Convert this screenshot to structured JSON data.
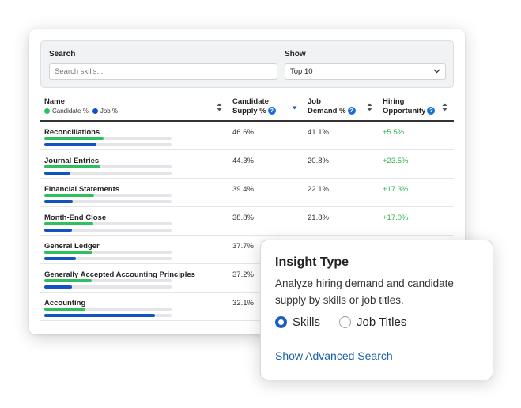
{
  "colors": {
    "candidate": "#2fbf5f",
    "job": "#1352c4",
    "opportunity": "#2fb14f",
    "link": "#1a5fa8"
  },
  "filters": {
    "search_label": "Search",
    "search_placeholder": "Search skills...",
    "show_label": "Show",
    "show_value": "Top 10"
  },
  "table": {
    "headers": {
      "name": "Name",
      "legend_candidate": "Candidate %",
      "legend_job": "Job %",
      "supply_l1": "Candidate",
      "supply_l2": "Supply %",
      "demand_l1": "Job",
      "demand_l2": "Demand %",
      "opp_l1": "Hiring",
      "opp_l2": "Opportunity"
    },
    "rows": [
      {
        "skill": "Reconciliations",
        "candidate_pct": 46.6,
        "job_pct": 41.1,
        "supply": "46.6%",
        "demand": "41.1%",
        "opportunity": "+5.5%"
      },
      {
        "skill": "Journal Entries",
        "candidate_pct": 44.3,
        "job_pct": 20.8,
        "supply": "44.3%",
        "demand": "20.8%",
        "opportunity": "+23.5%"
      },
      {
        "skill": "Financial Statements",
        "candidate_pct": 39.4,
        "job_pct": 22.1,
        "supply": "39.4%",
        "demand": "22.1%",
        "opportunity": "+17.3%"
      },
      {
        "skill": "Month-End Close",
        "candidate_pct": 38.8,
        "job_pct": 21.8,
        "supply": "38.8%",
        "demand": "21.8%",
        "opportunity": "+17.0%"
      },
      {
        "skill": "General Ledger",
        "candidate_pct": 37.7,
        "job_pct": 25.0,
        "supply": "37.7%",
        "demand": "",
        "opportunity": ""
      },
      {
        "skill": "Generally Accepted Accounting Principles",
        "candidate_pct": 37.2,
        "job_pct": 22.0,
        "supply": "37.2%",
        "demand": "",
        "opportunity": ""
      },
      {
        "skill": "Accounting",
        "candidate_pct": 32.1,
        "job_pct": 87.0,
        "supply": "32.1%",
        "demand": "",
        "opportunity": ""
      }
    ]
  },
  "insight": {
    "title": "Insight Type",
    "description": "Analyze hiring demand and candidate supply by skills or job titles.",
    "options": [
      "Skills",
      "Job Titles"
    ],
    "selected": "Skills",
    "advanced_link": "Show Advanced Search"
  }
}
